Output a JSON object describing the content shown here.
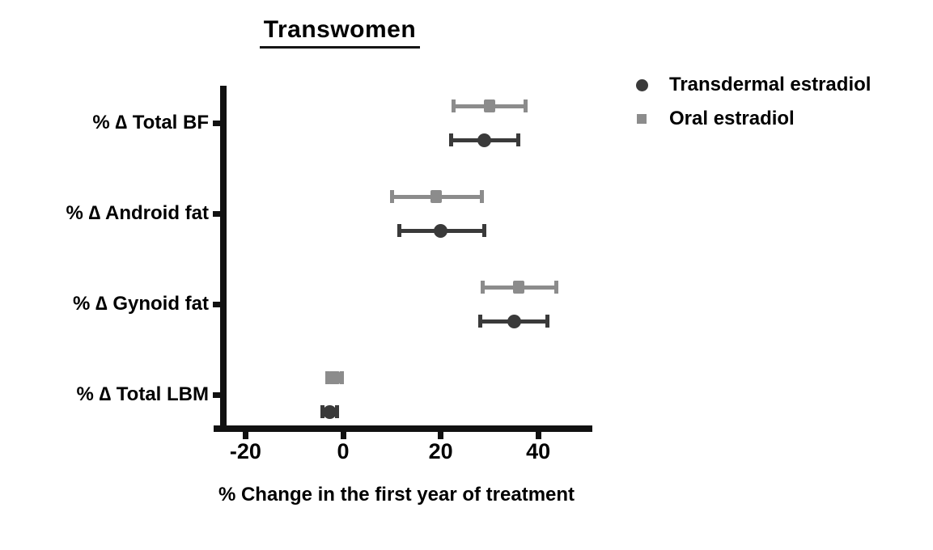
{
  "page": {
    "background": "#ffffff"
  },
  "chart_data": {
    "type": "scatter",
    "subtype": "horizontal-dot-plot-with-error-bars",
    "title": "Transwomen",
    "xlabel": "% Change in the first year of treatment",
    "ylabel": "",
    "categories": [
      "% ∆ Total BF",
      "% ∆ Android fat",
      "% ∆ Gynoid fat",
      "% ∆ Total LBM"
    ],
    "xticks": [
      -20,
      0,
      20,
      40
    ],
    "xlim": [
      -27,
      51
    ],
    "grid": false,
    "legend_position": "top-right",
    "axis_color": "#111111",
    "series": [
      {
        "name": "Transdermal estradiol",
        "marker": "circle",
        "color": "#3a3a3a",
        "pair_position": "lower",
        "values": [
          29,
          20,
          35,
          -2.7
        ],
        "ci_low": [
          22,
          11.5,
          28,
          -4.3
        ],
        "ci_high": [
          36,
          29,
          42,
          -1.2
        ]
      },
      {
        "name": "Oral estradiol",
        "marker": "square",
        "color": "#8c8c8c",
        "pair_position": "upper",
        "values": [
          30,
          19,
          36,
          -1.8
        ],
        "ci_low": [
          22.5,
          10,
          28.5,
          -3.3
        ],
        "ci_high": [
          37.5,
          28.5,
          43.8,
          -0.2
        ]
      }
    ]
  }
}
